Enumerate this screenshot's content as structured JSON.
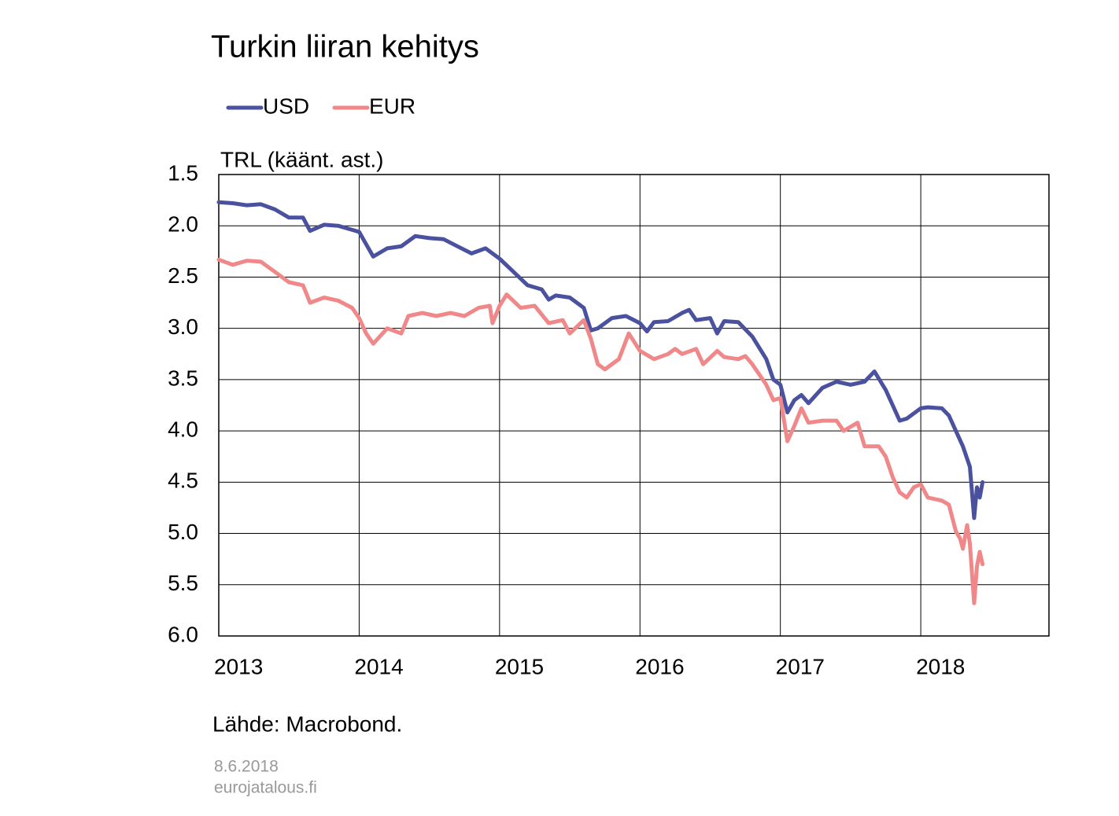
{
  "chart_data": {
    "type": "line",
    "title": "Turkin liiran kehitys",
    "y_label": "TRL (käänt. ast.)",
    "source": "Lähde:  Macrobond.",
    "footer_date": "8.6.2018",
    "footer_site": "eurojatalous.fi",
    "xlim": [
      2013,
      2018.913
    ],
    "xticks": [
      2013,
      2014,
      2015,
      2016,
      2017,
      2018
    ],
    "ylim": [
      1.5,
      6.0
    ],
    "y_inverted": true,
    "yticks": [
      1.5,
      {
        "value": 2,
        "label": "2.0"
      },
      2.5,
      {
        "value": 3,
        "label": "3.0"
      },
      3.5,
      {
        "value": 4,
        "label": "4.0"
      },
      4.5,
      {
        "value": 5,
        "label": "5.0"
      },
      5.5,
      {
        "value": 6,
        "label": "6.0"
      }
    ],
    "grid": true,
    "legend": "top-left",
    "series": [
      {
        "name": "USD",
        "color": "#4a52a0",
        "x": [
          2013.0,
          2013.1,
          2013.2,
          2013.3,
          2013.4,
          2013.5,
          2013.6,
          2013.65,
          2013.75,
          2013.85,
          2013.95,
          2014.0,
          2014.05,
          2014.1,
          2014.2,
          2014.3,
          2014.4,
          2014.5,
          2014.6,
          2014.7,
          2014.8,
          2014.9,
          2015.0,
          2015.1,
          2015.2,
          2015.3,
          2015.35,
          2015.4,
          2015.5,
          2015.6,
          2015.65,
          2015.7,
          2015.8,
          2015.9,
          2016.0,
          2016.05,
          2016.1,
          2016.2,
          2016.3,
          2016.35,
          2016.4,
          2016.5,
          2016.55,
          2016.6,
          2016.7,
          2016.8,
          2016.9,
          2016.95,
          2017.0,
          2017.05,
          2017.1,
          2017.15,
          2017.2,
          2017.3,
          2017.4,
          2017.5,
          2017.6,
          2017.67,
          2017.75,
          2017.8,
          2017.85,
          2017.9,
          2018.0,
          2018.05,
          2018.15,
          2018.2,
          2018.25,
          2018.3,
          2018.35,
          2018.38,
          2018.4,
          2018.42,
          2018.44
        ],
        "values": [
          1.77,
          1.78,
          1.8,
          1.79,
          1.84,
          1.92,
          1.92,
          2.05,
          1.99,
          2.0,
          2.04,
          2.06,
          2.18,
          2.3,
          2.22,
          2.2,
          2.1,
          2.12,
          2.13,
          2.2,
          2.27,
          2.22,
          2.32,
          2.45,
          2.58,
          2.62,
          2.72,
          2.68,
          2.7,
          2.8,
          3.02,
          3.0,
          2.9,
          2.88,
          2.95,
          3.03,
          2.94,
          2.93,
          2.85,
          2.82,
          2.92,
          2.9,
          3.05,
          2.93,
          2.94,
          3.08,
          3.3,
          3.5,
          3.55,
          3.82,
          3.7,
          3.65,
          3.73,
          3.58,
          3.52,
          3.55,
          3.52,
          3.42,
          3.6,
          3.75,
          3.9,
          3.88,
          3.78,
          3.77,
          3.78,
          3.85,
          4.0,
          4.15,
          4.35,
          4.85,
          4.55,
          4.65,
          4.5
        ]
      },
      {
        "name": "EUR",
        "color": "#f0888a",
        "x": [
          2013.0,
          2013.1,
          2013.2,
          2013.3,
          2013.4,
          2013.5,
          2013.6,
          2013.65,
          2013.75,
          2013.85,
          2013.95,
          2014.0,
          2014.05,
          2014.1,
          2014.2,
          2014.3,
          2014.35,
          2014.45,
          2014.55,
          2014.65,
          2014.75,
          2014.85,
          2014.93,
          2014.95,
          2015.0,
          2015.05,
          2015.15,
          2015.25,
          2015.35,
          2015.45,
          2015.5,
          2015.6,
          2015.65,
          2015.7,
          2015.75,
          2015.85,
          2015.92,
          2016.0,
          2016.1,
          2016.2,
          2016.25,
          2016.3,
          2016.4,
          2016.45,
          2016.55,
          2016.6,
          2016.7,
          2016.75,
          2016.8,
          2016.9,
          2016.95,
          2017.0,
          2017.05,
          2017.1,
          2017.15,
          2017.2,
          2017.3,
          2017.4,
          2017.45,
          2017.55,
          2017.6,
          2017.7,
          2017.75,
          2017.8,
          2017.85,
          2017.9,
          2017.95,
          2018.0,
          2018.05,
          2018.15,
          2018.2,
          2018.25,
          2018.28,
          2018.3,
          2018.33,
          2018.35,
          2018.38,
          2018.4,
          2018.42,
          2018.44
        ],
        "values": [
          2.33,
          2.38,
          2.34,
          2.35,
          2.45,
          2.55,
          2.58,
          2.75,
          2.7,
          2.73,
          2.8,
          2.9,
          3.05,
          3.15,
          3.0,
          3.05,
          2.88,
          2.85,
          2.88,
          2.85,
          2.88,
          2.8,
          2.78,
          2.95,
          2.78,
          2.67,
          2.8,
          2.78,
          2.95,
          2.92,
          3.05,
          2.92,
          3.1,
          3.35,
          3.4,
          3.3,
          3.05,
          3.22,
          3.3,
          3.25,
          3.2,
          3.25,
          3.2,
          3.35,
          3.22,
          3.28,
          3.3,
          3.27,
          3.35,
          3.55,
          3.7,
          3.68,
          4.1,
          3.95,
          3.78,
          3.92,
          3.9,
          3.9,
          4.0,
          3.92,
          4.15,
          4.15,
          4.25,
          4.45,
          4.6,
          4.65,
          4.55,
          4.52,
          4.65,
          4.68,
          4.72,
          4.98,
          5.05,
          5.15,
          4.92,
          5.1,
          5.68,
          5.32,
          5.18,
          5.3
        ]
      }
    ]
  }
}
